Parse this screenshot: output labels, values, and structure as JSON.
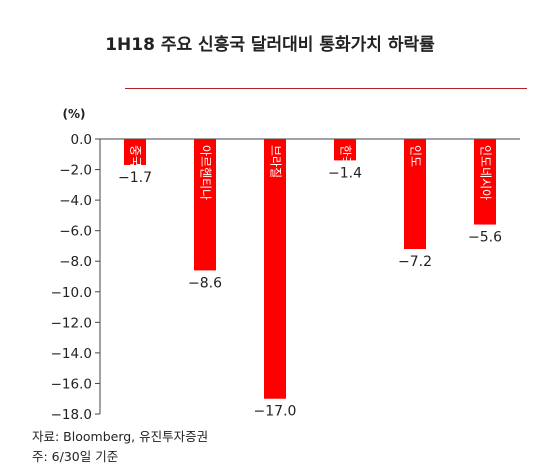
{
  "chart_data": {
    "type": "bar",
    "title": "1H18 주요 신흥국 달러대비 통화가치 하락률",
    "unit_label": "(%)",
    "categories": [
      "중국",
      "아르헨티나",
      "브라질",
      "한국",
      "인도",
      "인도네시아"
    ],
    "values": [
      -1.7,
      -8.6,
      -17.0,
      -1.4,
      -7.2,
      -5.6
    ],
    "value_labels": [
      "−1.7",
      "−8.6",
      "−17.0",
      "−1.4",
      "−7.2",
      "−5.6"
    ],
    "ylim": [
      -18,
      0
    ],
    "yticks": [
      0,
      -2,
      -4,
      -6,
      -8,
      -10,
      -12,
      -14,
      -16,
      -18
    ],
    "ytick_labels": [
      "0.0",
      "−2.0",
      "−4.0",
      "−6.0",
      "−8.0",
      "−10.0",
      "−12.0",
      "−14.0",
      "−16.0",
      "−18.0"
    ],
    "bar_color": "#ff0000",
    "grid": false,
    "legend": "none"
  },
  "notes": {
    "source": "자료: Bloomberg, 유진투자증권",
    "date": "주: 6/30일 기준"
  }
}
